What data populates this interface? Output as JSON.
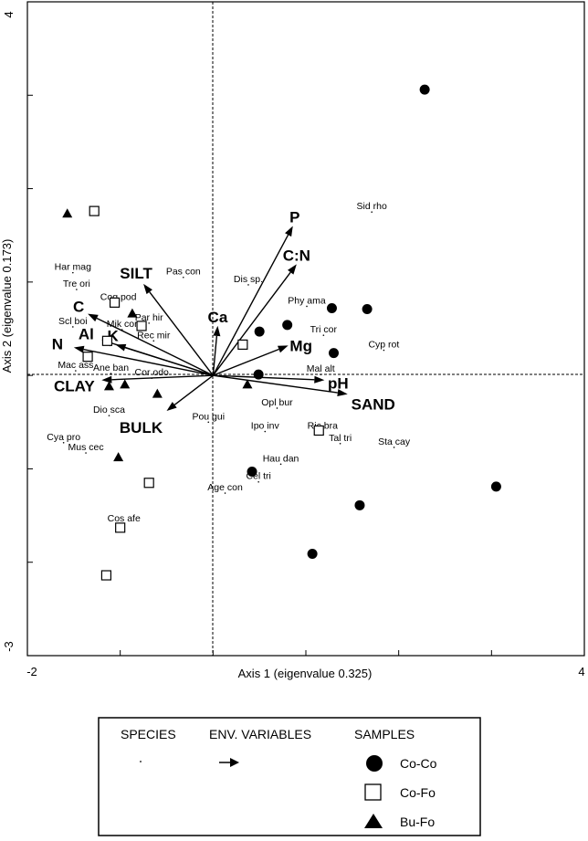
{
  "chart_data": {
    "type": "scatter",
    "subtype": "CCA biplot (samples, species, environmental variable arrows)",
    "xlabel": "Axis 1 (eigenvalue 0.325)",
    "ylabel": "Axis 2 (eigenvalue 0.173)",
    "xlim": [
      -2,
      4
    ],
    "ylim": [
      -3,
      4
    ],
    "x_tick_labels": [
      "-2",
      "4"
    ],
    "y_tick_labels": [
      "4",
      "-3"
    ],
    "x_ticks": [
      -2,
      -1,
      0,
      1,
      2,
      3,
      4
    ],
    "y_ticks": [
      -3,
      -2,
      -1,
      0,
      1,
      2,
      3,
      4
    ],
    "reference_lines": "dashed lines at x=0 and y=0",
    "grid": false,
    "env_variables": [
      {
        "name": "P",
        "x": 0.86,
        "y": 1.6
      },
      {
        "name": "C:N",
        "x": 0.9,
        "y": 1.19
      },
      {
        "name": "Ca",
        "x": 0.05,
        "y": 0.53
      },
      {
        "name": "Mg",
        "x": 0.81,
        "y": 0.32
      },
      {
        "name": "pH",
        "x": 1.2,
        "y": -0.05
      },
      {
        "name": "SAND",
        "x": 1.45,
        "y": -0.2
      },
      {
        "name": "BULK",
        "x": -0.5,
        "y": -0.38
      },
      {
        "name": "CLAY",
        "x": -1.2,
        "y": -0.05
      },
      {
        "name": "N",
        "x": -1.5,
        "y": 0.3
      },
      {
        "name": "Al",
        "x": -1.2,
        "y": 0.38
      },
      {
        "name": "K",
        "x": -1.05,
        "y": 0.33
      },
      {
        "name": "C",
        "x": -1.35,
        "y": 0.66
      },
      {
        "name": "SILT",
        "x": -0.75,
        "y": 0.98
      }
    ],
    "species": [
      {
        "name": "Sid rho",
        "x": 1.71,
        "y": 1.75
      },
      {
        "name": "Pas con",
        "x": -0.32,
        "y": 1.05
      },
      {
        "name": "Har mag",
        "x": -1.51,
        "y": 1.1
      },
      {
        "name": "Tre ori",
        "x": -1.47,
        "y": 0.92
      },
      {
        "name": "Cog pod",
        "x": -1.02,
        "y": 0.78
      },
      {
        "name": "Dis sp.",
        "x": 0.38,
        "y": 0.97
      },
      {
        "name": "Phy ama",
        "x": 1.01,
        "y": 0.74
      },
      {
        "name": "Par hir",
        "x": -0.69,
        "y": 0.56
      },
      {
        "name": "Mik cor",
        "x": -0.98,
        "y": 0.49
      },
      {
        "name": "Scl boi",
        "x": -1.51,
        "y": 0.52
      },
      {
        "name": "Rec mir",
        "x": -0.64,
        "y": 0.37
      },
      {
        "name": "Tri cor",
        "x": 1.19,
        "y": 0.43
      },
      {
        "name": "Cyp rot",
        "x": 1.84,
        "y": 0.27
      },
      {
        "name": "Mac ass",
        "x": -1.48,
        "y": 0.05
      },
      {
        "name": "Ane ban",
        "x": -1.1,
        "y": 0.02
      },
      {
        "name": "Cor odo",
        "x": -0.66,
        "y": -0.03
      },
      {
        "name": "Mal alt",
        "x": 1.16,
        "y": 0.01
      },
      {
        "name": "Opl bur",
        "x": 0.69,
        "y": -0.35
      },
      {
        "name": "Dio sca",
        "x": -1.12,
        "y": -0.43
      },
      {
        "name": "Pou gui",
        "x": -0.05,
        "y": -0.5
      },
      {
        "name": "Ipo inv",
        "x": 0.56,
        "y": -0.6
      },
      {
        "name": "Ric bra",
        "x": 1.18,
        "y": -0.6
      },
      {
        "name": "Tal tri",
        "x": 1.37,
        "y": -0.73
      },
      {
        "name": "Sta cay",
        "x": 1.95,
        "y": -0.77
      },
      {
        "name": "Cya pro",
        "x": -1.61,
        "y": -0.72
      },
      {
        "name": "Mus cec",
        "x": -1.37,
        "y": -0.83
      },
      {
        "name": "Hau dan",
        "x": 0.73,
        "y": -0.95
      },
      {
        "name": "Cel tri",
        "x": 0.49,
        "y": -1.14
      },
      {
        "name": "Age con",
        "x": 0.13,
        "y": -1.26
      },
      {
        "name": "Cos afe",
        "x": -0.96,
        "y": -1.59
      }
    ],
    "samples": [
      {
        "group": "Co-Co",
        "x": 2.28,
        "y": 3.06
      },
      {
        "group": "Co-Co",
        "x": 1.28,
        "y": 0.72
      },
      {
        "group": "Co-Co",
        "x": 1.66,
        "y": 0.71
      },
      {
        "group": "Co-Co",
        "x": 0.8,
        "y": 0.54
      },
      {
        "group": "Co-Co",
        "x": 0.5,
        "y": 0.47
      },
      {
        "group": "Co-Co",
        "x": 1.3,
        "y": 0.24
      },
      {
        "group": "Co-Co",
        "x": 0.49,
        "y": 0.01
      },
      {
        "group": "Co-Co",
        "x": 0.42,
        "y": -1.03
      },
      {
        "group": "Co-Co",
        "x": 1.58,
        "y": -1.39
      },
      {
        "group": "Co-Co",
        "x": 3.05,
        "y": -1.19
      },
      {
        "group": "Co-Co",
        "x": 1.07,
        "y": -1.91
      },
      {
        "group": "Co-Fo",
        "x": -1.28,
        "y": 1.76
      },
      {
        "group": "Co-Fo",
        "x": -1.06,
        "y": 0.78
      },
      {
        "group": "Co-Fo",
        "x": -0.77,
        "y": 0.53
      },
      {
        "group": "Co-Fo",
        "x": 0.32,
        "y": 0.33
      },
      {
        "group": "Co-Fo",
        "x": -1.14,
        "y": 0.37
      },
      {
        "group": "Co-Fo",
        "x": -1.35,
        "y": 0.2
      },
      {
        "group": "Co-Fo",
        "x": 1.14,
        "y": -0.59
      },
      {
        "group": "Co-Fo",
        "x": -0.69,
        "y": -1.15
      },
      {
        "group": "Co-Fo",
        "x": -1.0,
        "y": -1.63
      },
      {
        "group": "Co-Fo",
        "x": -1.15,
        "y": -2.14
      },
      {
        "group": "Bu-Fo",
        "x": -1.57,
        "y": 1.73
      },
      {
        "group": "Bu-Fo",
        "x": -0.87,
        "y": 0.66
      },
      {
        "group": "Bu-Fo",
        "x": -1.12,
        "y": -0.12
      },
      {
        "group": "Bu-Fo",
        "x": -0.95,
        "y": -0.1
      },
      {
        "group": "Bu-Fo",
        "x": -0.6,
        "y": -0.2
      },
      {
        "group": "Bu-Fo",
        "x": 0.37,
        "y": -0.1
      },
      {
        "group": "Bu-Fo",
        "x": -1.02,
        "y": -0.88
      }
    ],
    "legend": {
      "position": "bottom",
      "headers": [
        "SPECIES",
        "ENV. VARIABLES",
        "SAMPLES"
      ],
      "groups": [
        {
          "name": "Co-Co",
          "marker": "filled-circle"
        },
        {
          "name": "Co-Fo",
          "marker": "open-square"
        },
        {
          "name": "Bu-Fo",
          "marker": "filled-triangle"
        }
      ]
    }
  }
}
